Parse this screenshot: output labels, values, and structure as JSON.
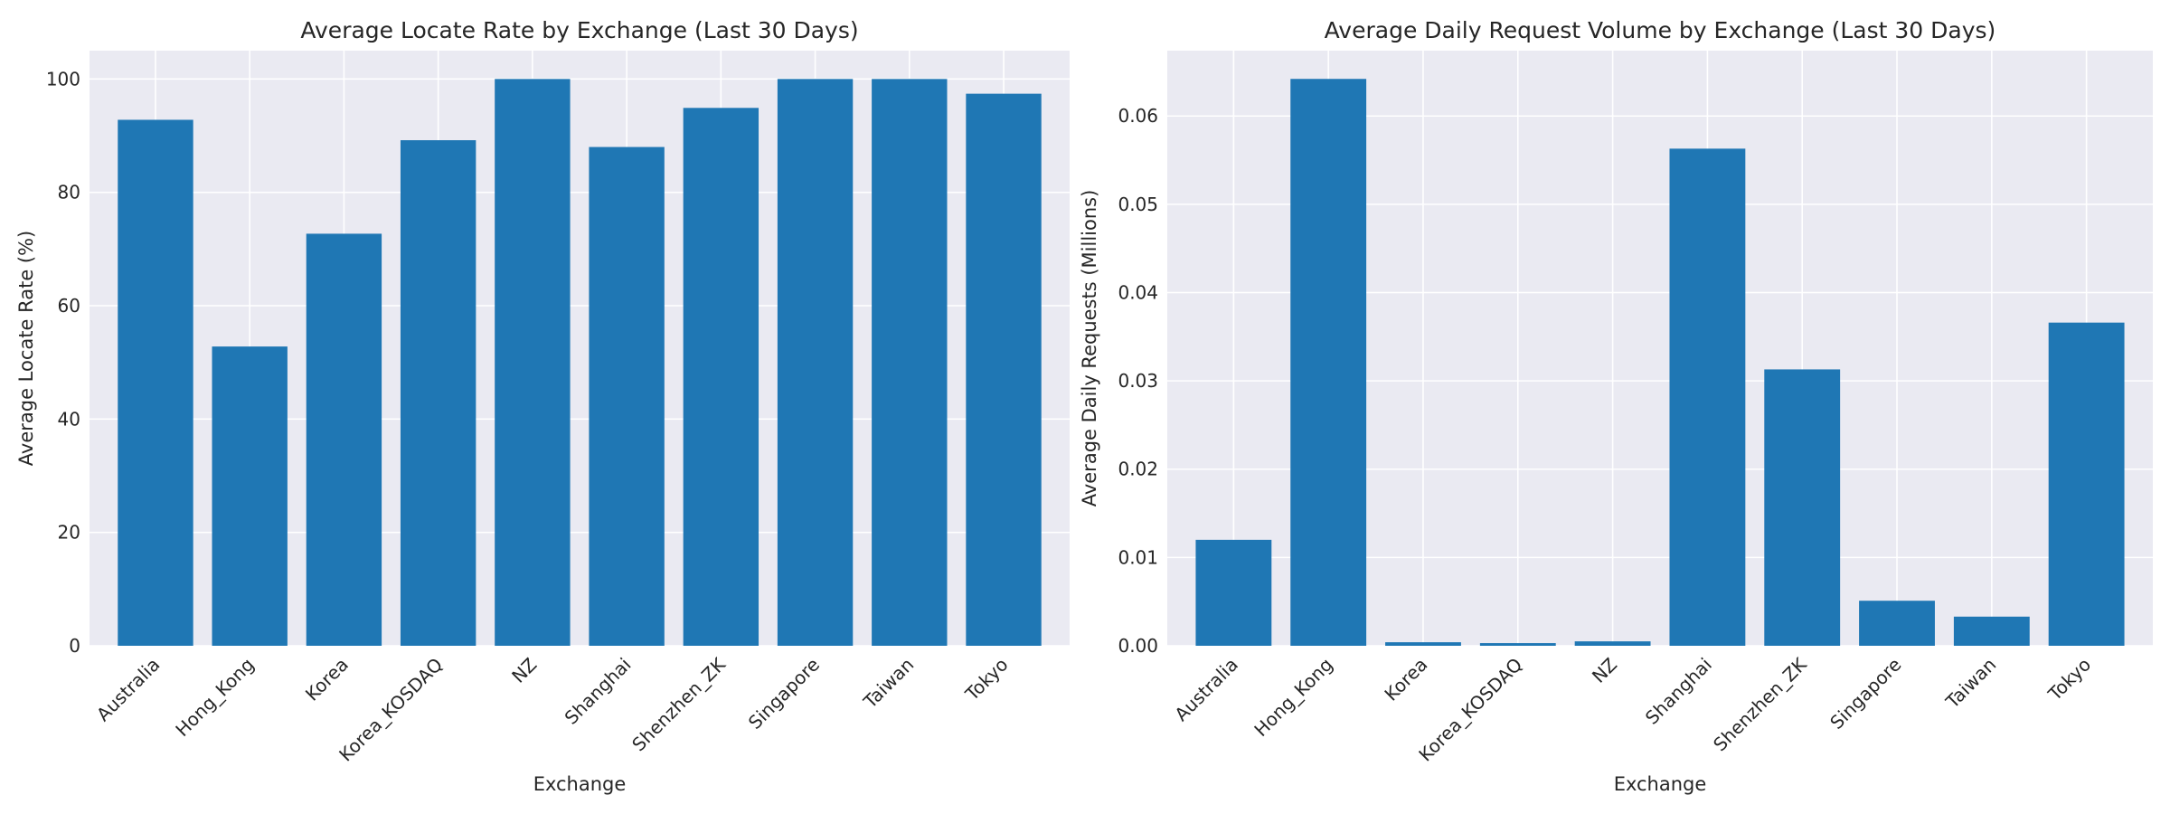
{
  "chart_data": [
    {
      "type": "bar",
      "title": "Average Locate Rate by Exchange (Last 30 Days)",
      "xlabel": "Exchange",
      "ylabel": "Average Locate Rate (%)",
      "categories": [
        "Australia",
        "Hong_Kong",
        "Korea",
        "Korea_KOSDAQ",
        "NZ",
        "Shanghai",
        "Shenzhen_ZK",
        "Singapore",
        "Taiwan",
        "Tokyo"
      ],
      "values": [
        92.8,
        52.8,
        72.7,
        89.2,
        100.0,
        88.0,
        94.9,
        100.0,
        100.0,
        97.4
      ],
      "ylim": [
        0,
        105
      ],
      "yticks": [
        0,
        20,
        40,
        60,
        80,
        100
      ],
      "ytick_labels": [
        "0",
        "20",
        "40",
        "60",
        "80",
        "100"
      ],
      "grid": true,
      "color": "#1f77b4"
    },
    {
      "type": "bar",
      "title": "Average Daily Request Volume by Exchange (Last 30 Days)",
      "xlabel": "Exchange",
      "ylabel": "Average Daily Requests (Millions)",
      "categories": [
        "Australia",
        "Hong_Kong",
        "Korea",
        "Korea_KOSDAQ",
        "NZ",
        "Shanghai",
        "Shenzhen_ZK",
        "Singapore",
        "Taiwan",
        "Tokyo"
      ],
      "values": [
        0.012,
        0.0642,
        0.0004,
        0.0003,
        0.0005,
        0.0563,
        0.0313,
        0.0051,
        0.0033,
        0.0366
      ],
      "ylim": [
        0,
        0.0674
      ],
      "yticks": [
        0,
        0.01,
        0.02,
        0.03,
        0.04,
        0.05,
        0.06
      ],
      "ytick_labels": [
        "0.00",
        "0.01",
        "0.02",
        "0.03",
        "0.04",
        "0.05",
        "0.06"
      ],
      "grid": true,
      "color": "#1f77b4"
    }
  ]
}
